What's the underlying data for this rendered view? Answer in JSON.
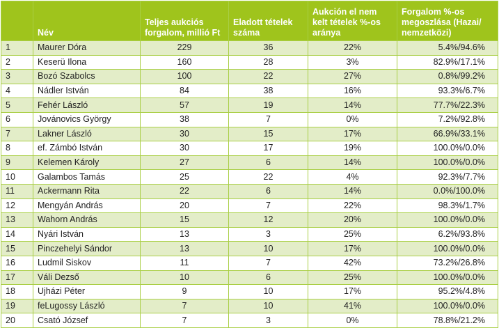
{
  "headers": [
    "",
    "Név",
    "Teljes aukciós forgalom, millió Ft",
    "Eladott tételek száma",
    "Aukción el nem kelt tételek %-os aránya",
    "Forgalom %-os megoszlása (Hazai/ nemzetközi)"
  ],
  "rows": [
    [
      "1",
      "Maurer Dóra",
      "229",
      "36",
      "22%",
      "5.4%/94.6%"
    ],
    [
      "2",
      "Keserü Ilona",
      "160",
      "28",
      "3%",
      "82.9%/17.1%"
    ],
    [
      "3",
      "Bozó Szabolcs",
      "100",
      "22",
      "27%",
      "0.8%/99.2%"
    ],
    [
      "4",
      "Nádler István",
      "84",
      "38",
      "16%",
      "93.3%/6.7%"
    ],
    [
      "5",
      "Fehér László",
      "57",
      "19",
      "14%",
      "77.7%/22.3%"
    ],
    [
      "6",
      "Jovánovics György",
      "38",
      "7",
      "0%",
      "7.2%/92.8%"
    ],
    [
      "7",
      "Lakner László",
      "30",
      "15",
      "17%",
      "66.9%/33.1%"
    ],
    [
      "8",
      "ef. Zámbó István",
      "30",
      "17",
      "19%",
      "100.0%/0.0%"
    ],
    [
      "9",
      "Kelemen Károly",
      "27",
      "6",
      "14%",
      "100.0%/0.0%"
    ],
    [
      "10",
      "Galambos Tamás",
      "25",
      "22",
      "4%",
      "92.3%/7.7%"
    ],
    [
      "11",
      "Ackermann Rita",
      "22",
      "6",
      "14%",
      "0.0%/100.0%"
    ],
    [
      "12",
      "Mengyán András",
      "20",
      "7",
      "22%",
      "98.3%/1.7%"
    ],
    [
      "13",
      "Wahorn András",
      "15",
      "12",
      "20%",
      "100.0%/0.0%"
    ],
    [
      "14",
      "Nyári István",
      "13",
      "3",
      "25%",
      "6.2%/93.8%"
    ],
    [
      "15",
      "Pinczehelyi Sándor",
      "13",
      "10",
      "17%",
      "100.0%/0.0%"
    ],
    [
      "16",
      "Ludmil Siskov",
      "11",
      "7",
      "42%",
      "73.2%/26.8%"
    ],
    [
      "17",
      "Váli Dezső",
      "10",
      "6",
      "25%",
      "100.0%/0.0%"
    ],
    [
      "18",
      "Ujházi Péter",
      "9",
      "10",
      "17%",
      "95.2%/4.8%"
    ],
    [
      "19",
      "feLugossy László",
      "7",
      "10",
      "41%",
      "100.0%/0.0%"
    ],
    [
      "20",
      "Csató József",
      "7",
      "3",
      "0%",
      "78.8%/21.2%"
    ]
  ]
}
